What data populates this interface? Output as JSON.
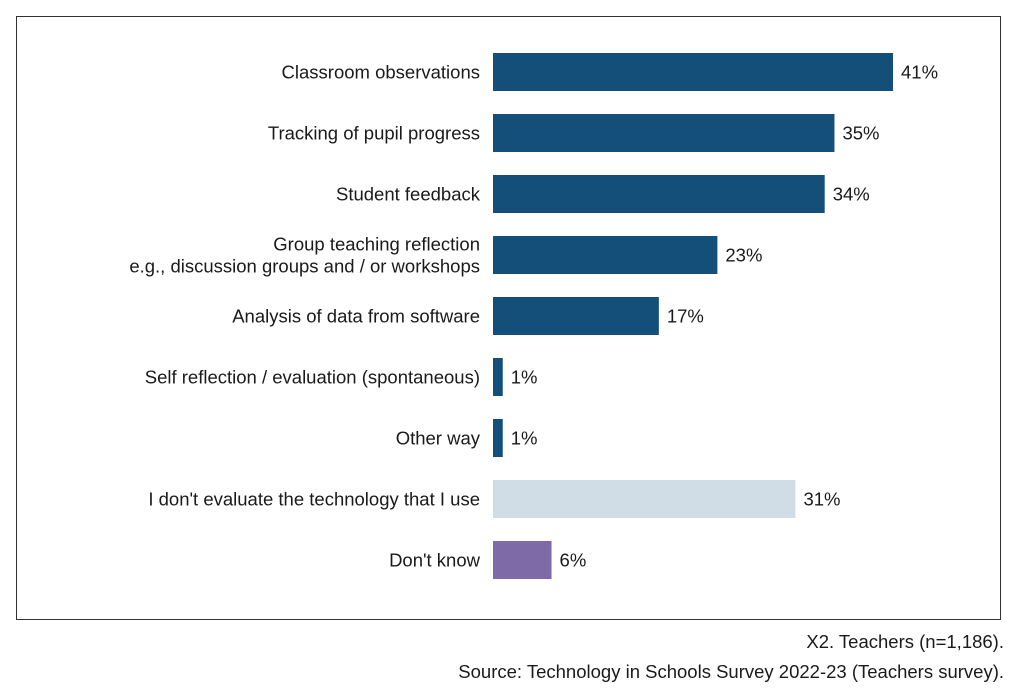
{
  "chart_data": {
    "type": "bar",
    "orientation": "horizontal",
    "categories": [
      [
        "Classroom observations"
      ],
      [
        "Tracking of pupil progress"
      ],
      [
        "Student feedback"
      ],
      [
        "Group teaching reflection",
        "e.g., discussion groups and / or workshops"
      ],
      [
        "Analysis of data from software"
      ],
      [
        "Self reflection / evaluation (spontaneous)"
      ],
      [
        "Other way"
      ],
      [
        "I don't evaluate the technology that I use"
      ],
      [
        "Don't know"
      ]
    ],
    "values": [
      41,
      35,
      34,
      23,
      17,
      1,
      1,
      31,
      6
    ],
    "value_labels": [
      "41%",
      "35%",
      "34%",
      "23%",
      "17%",
      "1%",
      "1%",
      "31%",
      "6%"
    ],
    "colors": [
      "#134f78",
      "#134f78",
      "#134f78",
      "#134f78",
      "#134f78",
      "#134f78",
      "#134f78",
      "#d0dde7",
      "#7d6aa6"
    ],
    "xlim": [
      0,
      41
    ],
    "grid": false,
    "legend": "none"
  },
  "footnotes": {
    "note": "X2. Teachers (n=1,186).",
    "source": "Source: Technology in Schools Survey 2022-23 (Teachers survey)."
  }
}
